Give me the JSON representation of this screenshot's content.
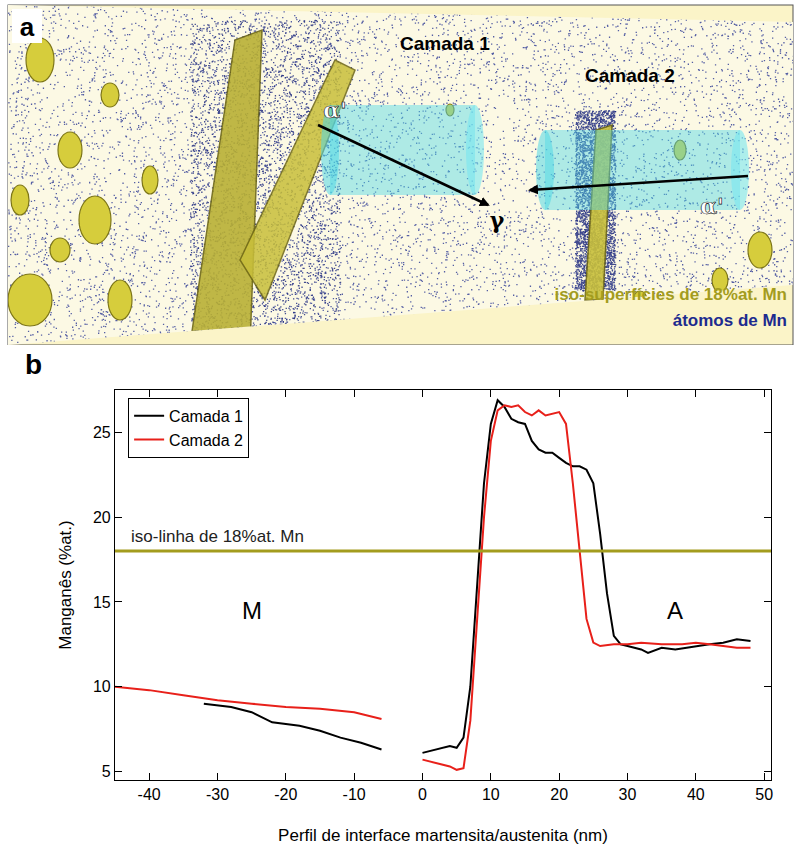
{
  "panel_a": {
    "letter": "a",
    "labels": {
      "layer1": "Camada 1",
      "layer2": "Camada 2",
      "alpha_left": "α'",
      "gamma": "γ",
      "alpha_right": "α'",
      "legend_iso": "iso-superfícies de 18%at. Mn",
      "legend_atoms": "átomos de Mn"
    }
  },
  "chart_data": {
    "type": "line",
    "letter": "b",
    "x_label": "Perfil de interface martensita/austenita (nm)",
    "y_label": "Manganês (%at.)",
    "xlim": [
      -45,
      51
    ],
    "xticks": [
      -40,
      -30,
      -20,
      -10,
      0,
      10,
      20,
      30,
      40,
      50
    ],
    "ylim": [
      4.5,
      27.5
    ],
    "yticks": [
      5,
      10,
      15,
      20,
      25
    ],
    "legend": "upper left",
    "grid": false,
    "series": [
      {
        "name": "Camada 1",
        "color": "#000000",
        "x": [
          -32,
          -28,
          -25,
          -22,
          -18,
          -15,
          -12,
          -9,
          -6,
          -3,
          0,
          2,
          4,
          5,
          6,
          7,
          8,
          9,
          10,
          11,
          12,
          13,
          14,
          15,
          16,
          17,
          18,
          19,
          20,
          21,
          22,
          23,
          24,
          25,
          26,
          27,
          28,
          29,
          30,
          32,
          33,
          35,
          37,
          40,
          42,
          44,
          46,
          48
        ],
        "values": [
          9.0,
          8.8,
          8.5,
          7.9,
          7.7,
          7.4,
          7.0,
          6.7,
          6.3,
          null,
          6.1,
          6.3,
          6.5,
          6.4,
          7.0,
          10,
          16,
          22,
          25.5,
          26.9,
          26.5,
          25.8,
          25.6,
          25.5,
          24.5,
          24,
          23.8,
          23.8,
          23.5,
          23.2,
          23,
          23,
          22.8,
          22,
          19,
          15.5,
          13,
          12.5,
          12.4,
          12.2,
          12,
          12.3,
          12.2,
          12.4,
          12.5,
          12.6,
          12.8,
          12.7
        ]
      },
      {
        "name": "Camada 2",
        "color": "#e8201a",
        "x": [
          -45,
          -40,
          -35,
          -30,
          -25,
          -20,
          -15,
          -10,
          -6,
          -3,
          0,
          2,
          4,
          5,
          6,
          7,
          8,
          9,
          10,
          11,
          12,
          13,
          14,
          15,
          16,
          17,
          18,
          19,
          20,
          21,
          22,
          23,
          24,
          25,
          26,
          28,
          30,
          32,
          35,
          38,
          40,
          42,
          44,
          46,
          48
        ],
        "values": [
          10.0,
          9.8,
          9.5,
          9.2,
          9.0,
          8.8,
          8.7,
          8.5,
          8.1,
          null,
          5.7,
          5.5,
          5.3,
          5.1,
          5.2,
          8,
          14,
          20,
          24.5,
          26.3,
          26.6,
          26.5,
          26.6,
          26.2,
          26.0,
          26.3,
          26.0,
          26.1,
          26.2,
          25.5,
          22,
          18,
          14,
          12.6,
          12.4,
          12.5,
          12.5,
          12.6,
          12.5,
          12.5,
          12.6,
          12.5,
          12.4,
          12.3,
          12.3
        ]
      }
    ],
    "hlines": [
      {
        "y": 18,
        "label": "iso-linha de 18%at. Mn",
        "x": -43,
        "color": "#a39c1e"
      }
    ],
    "annotations": [
      {
        "text": "M",
        "x": -25,
        "y": 14.5
      },
      {
        "text": "A",
        "x": 37,
        "y": 14.5
      }
    ]
  }
}
